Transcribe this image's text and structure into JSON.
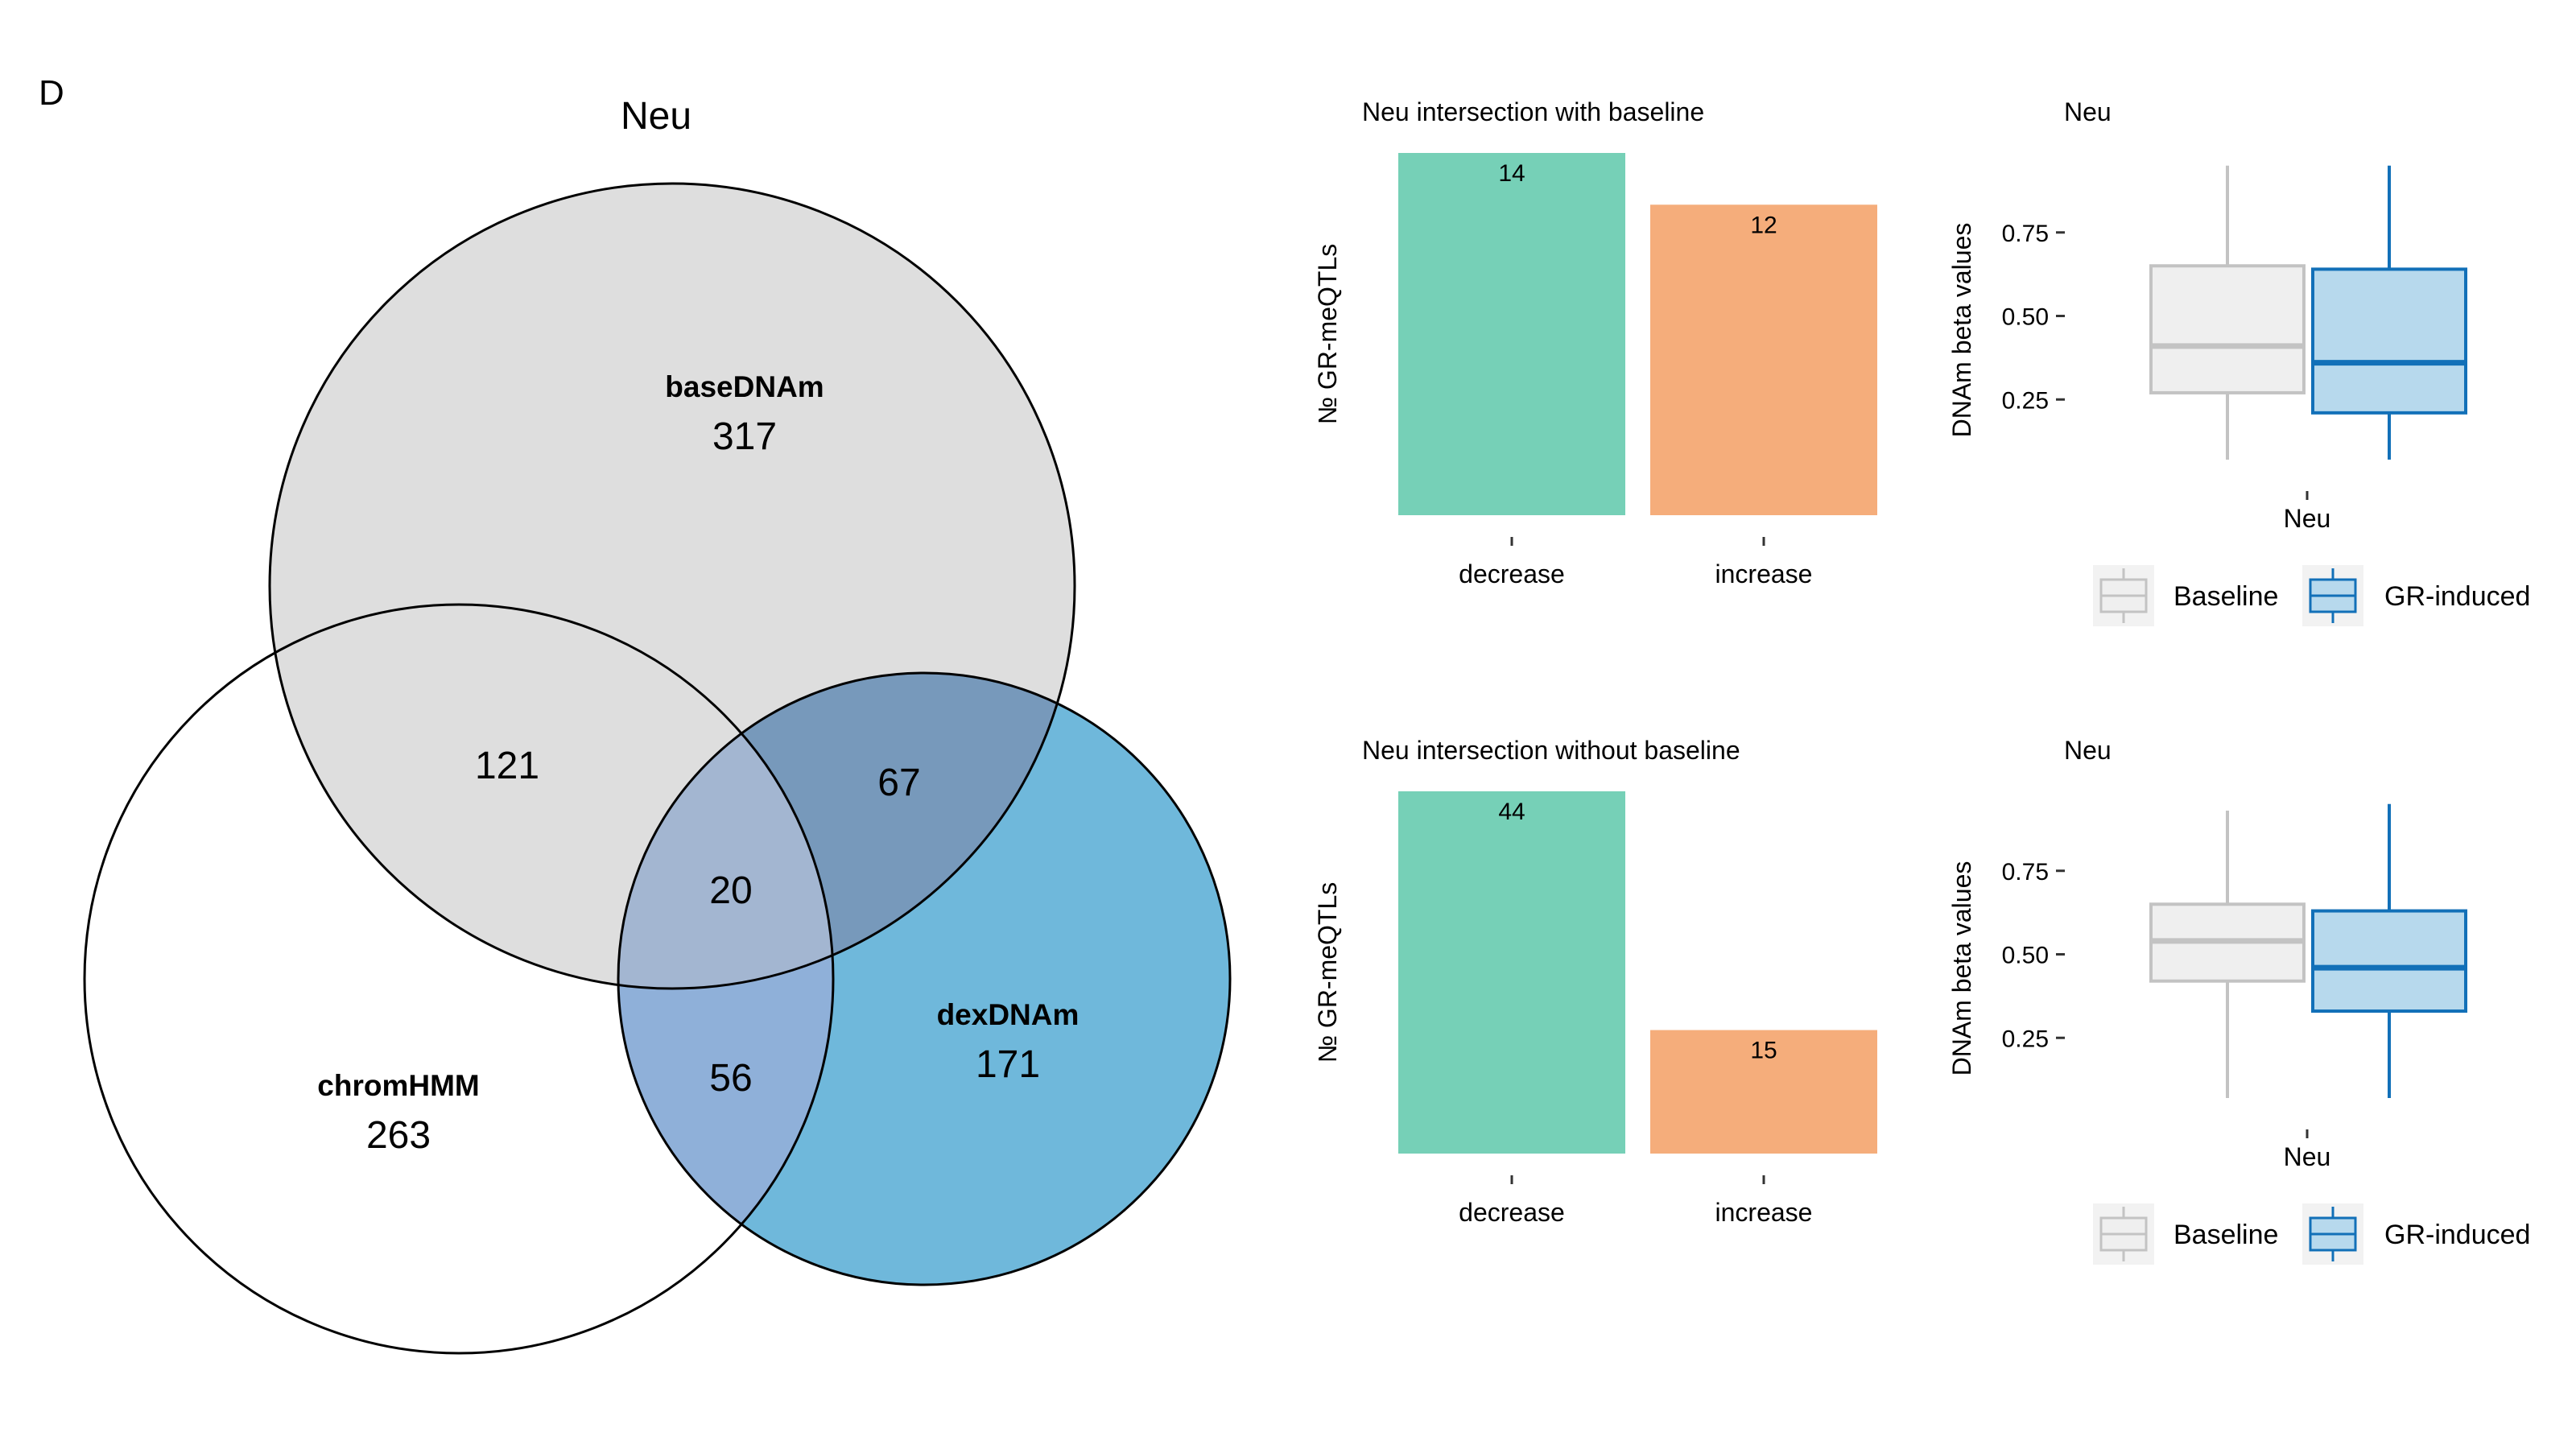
{
  "panel_letter": "D",
  "chart_data": [
    {
      "type": "venn",
      "title": "Neu",
      "sets": [
        {
          "name": "baseDNAm",
          "only": 317,
          "color": "#dedede"
        },
        {
          "name": "chromHMM",
          "only": 263,
          "color": "#ffffff"
        },
        {
          "name": "dexDNAm",
          "only": 171,
          "color": "#6fb8db"
        }
      ],
      "intersections": [
        {
          "sets": [
            "baseDNAm",
            "chromHMM"
          ],
          "value": 121,
          "color": "#dedede"
        },
        {
          "sets": [
            "baseDNAm",
            "dexDNAm"
          ],
          "value": 67,
          "color": "#7799bb"
        },
        {
          "sets": [
            "chromHMM",
            "dexDNAm"
          ],
          "value": 56,
          "color": "#8fb0d9"
        },
        {
          "sets": [
            "baseDNAm",
            "chromHMM",
            "dexDNAm"
          ],
          "value": 20,
          "color": "#a3b6d1"
        }
      ]
    },
    {
      "type": "bar",
      "title": "Neu intersection with baseline",
      "ylabel": "№ GR-meQTLs",
      "xlabel": "",
      "categories": [
        "decrease",
        "increase"
      ],
      "values": [
        14,
        12
      ],
      "colors": [
        "#76d0b7",
        "#f5ad7b"
      ],
      "ylim": [
        0,
        14
      ]
    },
    {
      "type": "bar",
      "title": "Neu intersection without baseline",
      "ylabel": "№ GR-meQTLs",
      "xlabel": "",
      "categories": [
        "decrease",
        "increase"
      ],
      "values": [
        44,
        15
      ],
      "colors": [
        "#76d0b7",
        "#f5ad7b"
      ],
      "ylim": [
        0,
        44
      ]
    },
    {
      "type": "box",
      "title": "Neu",
      "ylabel": "DNAm beta values",
      "xlabel": "",
      "category": "Neu",
      "yticks": [
        0.25,
        0.5,
        0.75
      ],
      "ytick_labels": [
        "0.25",
        "0.50",
        "0.75"
      ],
      "ylim": [
        0,
        1
      ],
      "series": [
        {
          "name": "Baseline",
          "whisker_low": 0.07,
          "q1": 0.27,
          "median": 0.41,
          "q3": 0.65,
          "whisker_high": 0.95,
          "fill": "#efefef",
          "stroke": "#c3c3c3"
        },
        {
          "name": "GR-induced",
          "whisker_low": 0.07,
          "q1": 0.21,
          "median": 0.36,
          "q3": 0.64,
          "whisker_high": 0.95,
          "fill": "#b7d9ed",
          "stroke": "#1270b8"
        }
      ],
      "legend": [
        "Baseline",
        "GR-induced"
      ],
      "legend_position": "bottom"
    },
    {
      "type": "box",
      "title": "Neu",
      "ylabel": "DNAm beta values",
      "xlabel": "",
      "category": "Neu",
      "yticks": [
        0.25,
        0.5,
        0.75
      ],
      "ytick_labels": [
        "0.25",
        "0.50",
        "0.75"
      ],
      "ylim": [
        0,
        1
      ],
      "series": [
        {
          "name": "Baseline",
          "whisker_low": 0.07,
          "q1": 0.42,
          "median": 0.54,
          "q3": 0.65,
          "whisker_high": 0.93,
          "fill": "#efefef",
          "stroke": "#c3c3c3"
        },
        {
          "name": "GR-induced",
          "whisker_low": 0.07,
          "q1": 0.33,
          "median": 0.46,
          "q3": 0.63,
          "whisker_high": 0.95,
          "fill": "#b7d9ed",
          "stroke": "#1270b8"
        }
      ],
      "legend": [
        "Baseline",
        "GR-induced"
      ],
      "legend_position": "bottom"
    }
  ]
}
